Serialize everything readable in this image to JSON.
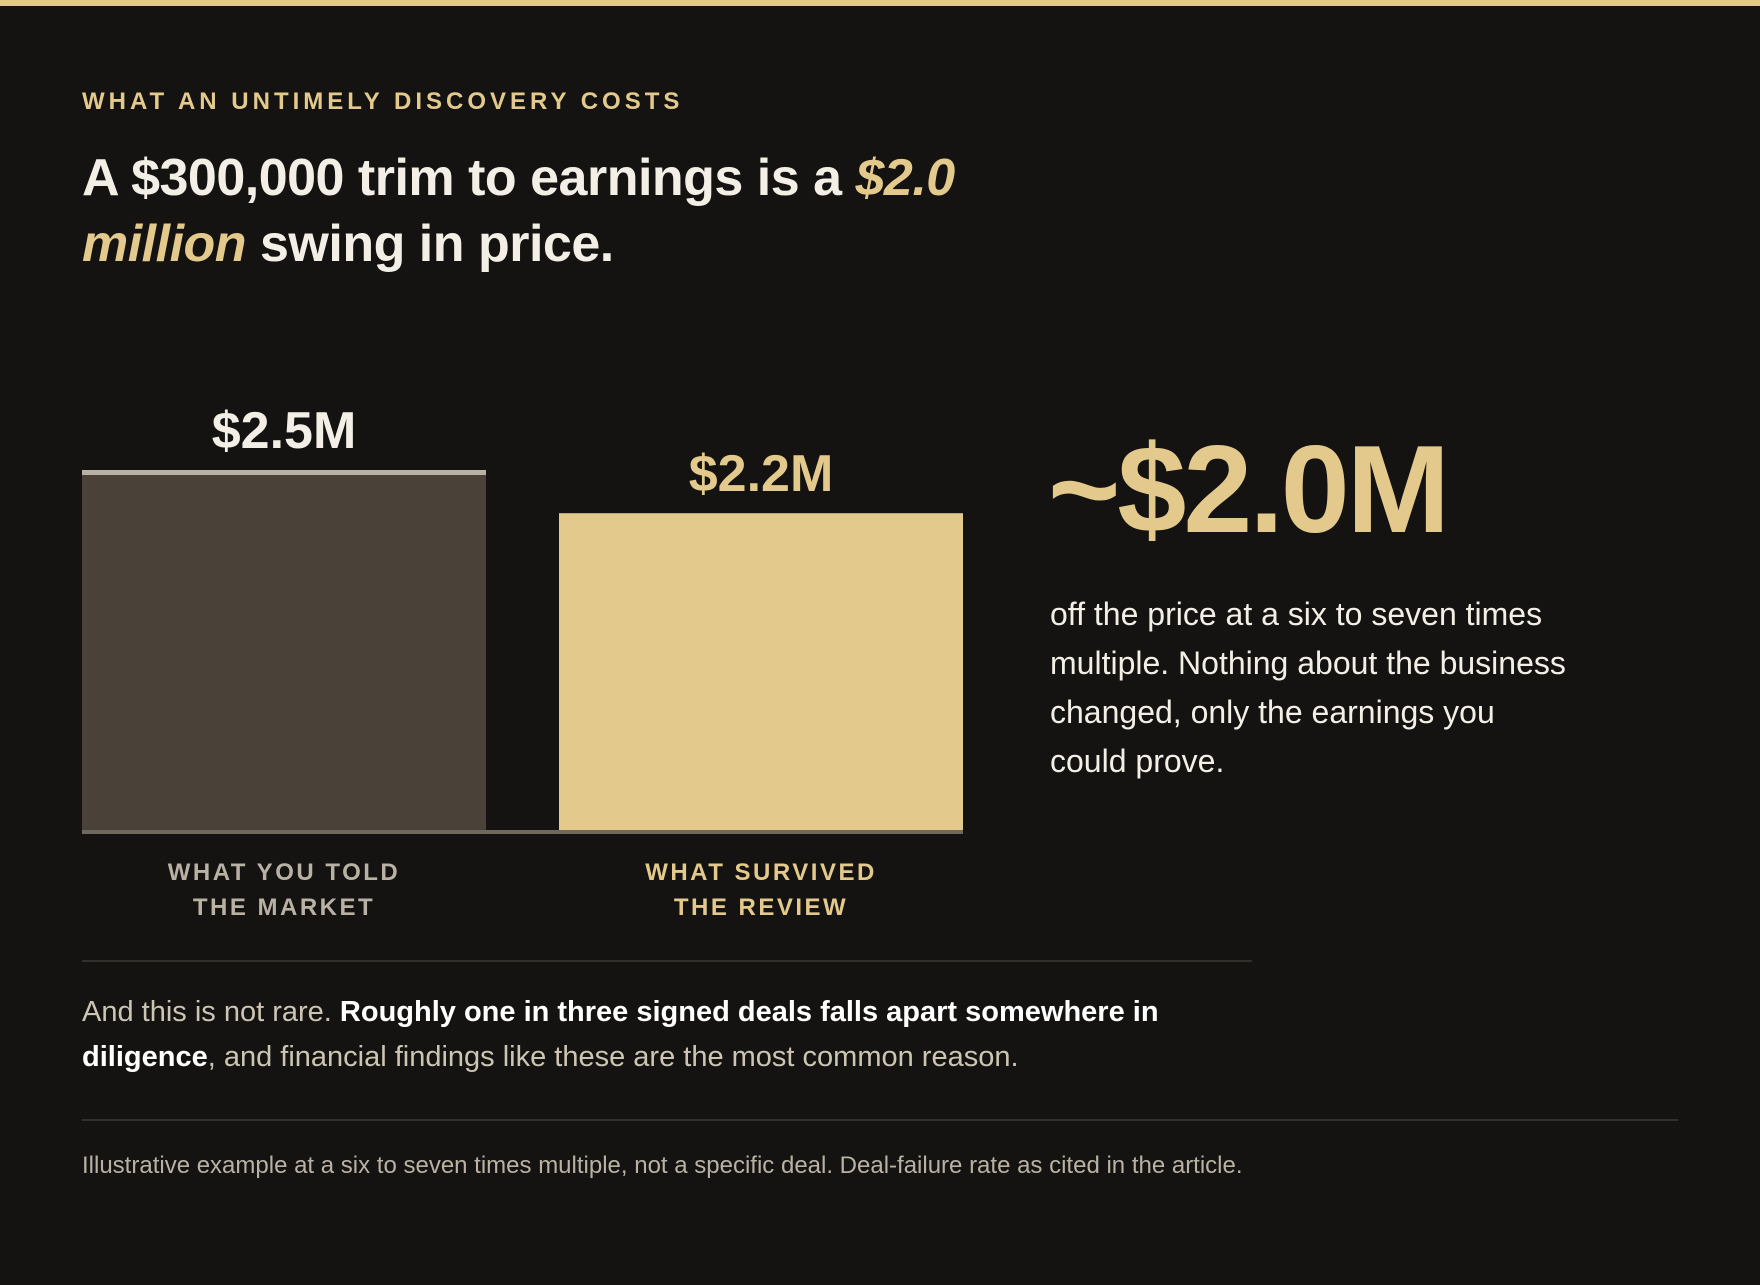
{
  "eyebrow": "WHAT AN UNTIMELY DISCOVERY COSTS",
  "headline": {
    "lead": "A $300,000 trim to earnings is a ",
    "emphasis": "$2.0 million",
    "tail": " swing in price."
  },
  "chart_data": {
    "type": "bar",
    "categories": [
      "WHAT YOU TOLD THE MARKET",
      "WHAT SURVIVED THE REVIEW"
    ],
    "category_lines": [
      [
        "WHAT YOU TOLD",
        "THE MARKET"
      ],
      [
        "WHAT SURVIVED",
        "THE REVIEW"
      ]
    ],
    "values": [
      2.5,
      2.2
    ],
    "value_labels": [
      "$2.5M",
      "$2.2M"
    ],
    "unit": "$M",
    "ylim": [
      0,
      2.5
    ],
    "colors": [
      "#4a4139",
      "#e3ca8c"
    ],
    "label_colors": [
      "#b9b2a4",
      "#e3ca8c"
    ],
    "value_label_colors": [
      "#f3efe6",
      "#e3ca8c"
    ]
  },
  "callout": {
    "figure": "~$2.0M",
    "note": "off the price at a six to seven times multiple. Nothing about the business changed, only the earnings you could prove."
  },
  "body": {
    "lead": "And this is not rare. ",
    "strong": "Roughly one in three signed deals falls apart somewhere in diligence",
    "tail": ", and financial findings like these are the most common reason."
  },
  "footnote": "Illustrative example at a six to seven times multiple, not a specific deal. Deal-failure rate as cited in the article.",
  "colors": {
    "background": "#141311",
    "accent": "#e3ca8c",
    "muted_bar": "#4a4139",
    "text": "#f3efe6"
  }
}
